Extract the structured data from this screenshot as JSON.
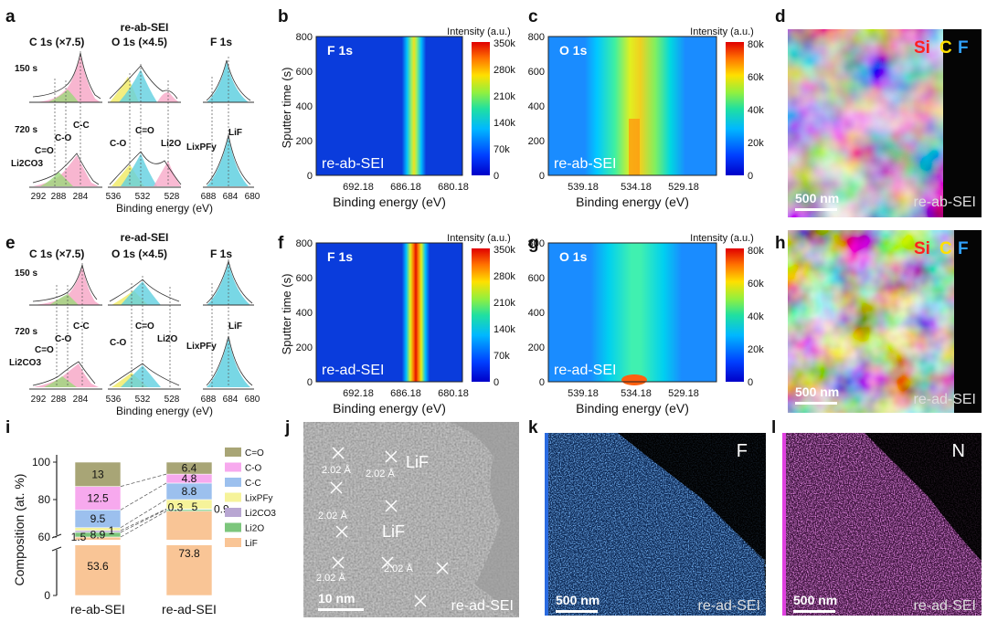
{
  "xps": [
    {
      "panel": "a",
      "title": "re-ab-SEI",
      "sub_c": "C 1s (×7.5)",
      "sub_o": "O 1s (×4.5)",
      "sub_f": "F 1s",
      "t1": "150 s",
      "t2": "720 s",
      "peaks": {
        "cc": "C-C",
        "co": "C-O",
        "ceo": "C=O",
        "li2co3": "Li2CO3",
        "ceo2": "C=O",
        "co2": "C-O",
        "li2o": "Li2O",
        "lixpfy": "LixPFy",
        "lif": "LiF"
      },
      "ticks_c": [
        "292",
        "288",
        "284"
      ],
      "ticks_o": [
        "536",
        "532",
        "528"
      ],
      "ticks_f": [
        "688",
        "684",
        "680"
      ],
      "xlabel": "Binding energy (eV)"
    },
    {
      "panel": "e",
      "title": "re-ad-SEI",
      "sub_c": "C 1s (×7.5)",
      "sub_o": "O 1s (×4.5)",
      "sub_f": "F 1s",
      "t1": "150 s",
      "t2": "720 s",
      "peaks": {
        "cc": "C-C",
        "co": "C-O",
        "ceo": "C=O",
        "li2co3": "Li2CO3",
        "ceo2": "C=O",
        "co2": "C-O",
        "li2o": "Li2O",
        "lixpfy": "LixPFy",
        "lif": "LiF"
      },
      "ticks_c": [
        "292",
        "288",
        "284"
      ],
      "ticks_o": [
        "536",
        "532",
        "528"
      ],
      "ticks_f": [
        "688",
        "684",
        "680"
      ],
      "xlabel": "Binding energy (eV)"
    }
  ],
  "depth_maps": {
    "ylabel": "Sputter time (s)",
    "xlabel": "Binding energy (eV)",
    "cbar_label": "Intensity (a.u.)",
    "yticks": [
      "0",
      "200",
      "400",
      "600",
      "800"
    ],
    "panels": [
      {
        "panel": "b",
        "element": "F 1s",
        "sample": "re-ab-SEI",
        "xticks": [
          "692.18",
          "686.18",
          "680.18"
        ],
        "cbar": [
          "0",
          "70k",
          "140k",
          "210k",
          "280k",
          "350k"
        ]
      },
      {
        "panel": "c",
        "element": "O 1s",
        "sample": "re-ab-SEI",
        "xticks": [
          "539.18",
          "534.18",
          "529.18"
        ],
        "cbar": [
          "0",
          "20k",
          "40k",
          "60k",
          "80k"
        ]
      },
      {
        "panel": "f",
        "element": "F 1s",
        "sample": "re-ad-SEI",
        "xticks": [
          "692.18",
          "686.18",
          "680.18"
        ],
        "cbar": [
          "0",
          "70k",
          "140k",
          "210k",
          "280k",
          "350k"
        ]
      },
      {
        "panel": "g",
        "element": "O 1s",
        "sample": "re-ad-SEI",
        "xticks": [
          "539.18",
          "534.18",
          "529.18"
        ],
        "cbar": [
          "0",
          "20k",
          "40k",
          "60k",
          "80k"
        ]
      }
    ]
  },
  "micrographs": [
    {
      "panel": "d",
      "scale": "500 nm",
      "sample": "re-ab-SEI",
      "legend": [
        "Si",
        "C",
        "F"
      ]
    },
    {
      "panel": "h",
      "scale": "500 nm",
      "sample": "re-ad-SEI",
      "legend": [
        "Si",
        "C",
        "F"
      ]
    },
    {
      "panel": "j",
      "scale": "10 nm",
      "sample": "re-ad-SEI",
      "lif": "LiF",
      "lif2": "LiF",
      "spacing": "2.02 Å"
    },
    {
      "panel": "k",
      "scale": "500 nm",
      "sample": "re-ad-SEI",
      "element": "F"
    },
    {
      "panel": "l",
      "scale": "500 nm",
      "sample": "re-ad-SEI",
      "element": "N"
    }
  ],
  "chart_data": {
    "type": "bar",
    "subtype": "stacked",
    "panel": "i",
    "title": "",
    "categories": [
      "re-ab-SEI",
      "re-ad-SEI"
    ],
    "ylabel": "Composition (at. %)",
    "xlabel": "",
    "ylim": [
      0,
      100
    ],
    "axis_break": [
      50,
      60
    ],
    "yticks": [
      "0",
      "60",
      "80",
      "100"
    ],
    "series": [
      {
        "name": "LiF",
        "values": [
          53.6,
          73.8
        ],
        "color": "#f9c596"
      },
      {
        "name": "Li2O",
        "values": [
          8.9,
          0.9
        ],
        "color": "#7cc67c"
      },
      {
        "name": "Li2CO3",
        "values": [
          1,
          0.3
        ],
        "color": "#b8a6d2"
      },
      {
        "name": "LixPFy",
        "values": [
          1.5,
          5
        ],
        "color": "#f6f39a"
      },
      {
        "name": "C-C",
        "values": [
          9.5,
          8.8
        ],
        "color": "#9cc0ee"
      },
      {
        "name": "C-O",
        "values": [
          12.5,
          4.8
        ],
        "color": "#f7a9ee"
      },
      {
        "name": "C=O",
        "values": [
          13,
          6.4
        ],
        "color": "#a8a576"
      }
    ],
    "data_labels": [
      {
        "series": "LiF",
        "category": "re-ab-SEI",
        "text": "53.6"
      },
      {
        "series": "Li2O",
        "category": "re-ab-SEI",
        "text": "8.9"
      },
      {
        "series": "Li2CO3",
        "category": "re-ab-SEI",
        "text": "1"
      },
      {
        "series": "LixPFy",
        "category": "re-ab-SEI",
        "text": "1.5"
      },
      {
        "series": "C-C",
        "category": "re-ab-SEI",
        "text": "9.5"
      },
      {
        "series": "C-O",
        "category": "re-ab-SEI",
        "text": "12.5"
      },
      {
        "series": "C=O",
        "category": "re-ab-SEI",
        "text": "13"
      },
      {
        "series": "LiF",
        "category": "re-ad-SEI",
        "text": "73.8"
      },
      {
        "series": "Li2O",
        "category": "re-ad-SEI",
        "text": "0.9"
      },
      {
        "series": "Li2CO3",
        "category": "re-ad-SEI",
        "text": "0.3"
      },
      {
        "series": "LixPFy",
        "category": "re-ad-SEI",
        "text": "5"
      },
      {
        "series": "C-C",
        "category": "re-ad-SEI",
        "text": "8.8"
      },
      {
        "series": "C-O",
        "category": "re-ad-SEI",
        "text": "4.8"
      },
      {
        "series": "C=O",
        "category": "re-ad-SEI",
        "text": "6.4"
      }
    ],
    "legend": [
      "C=O",
      "C-O",
      "C-C",
      "LixPFy",
      "Li2CO3",
      "Li2O",
      "LiF"
    ]
  }
}
